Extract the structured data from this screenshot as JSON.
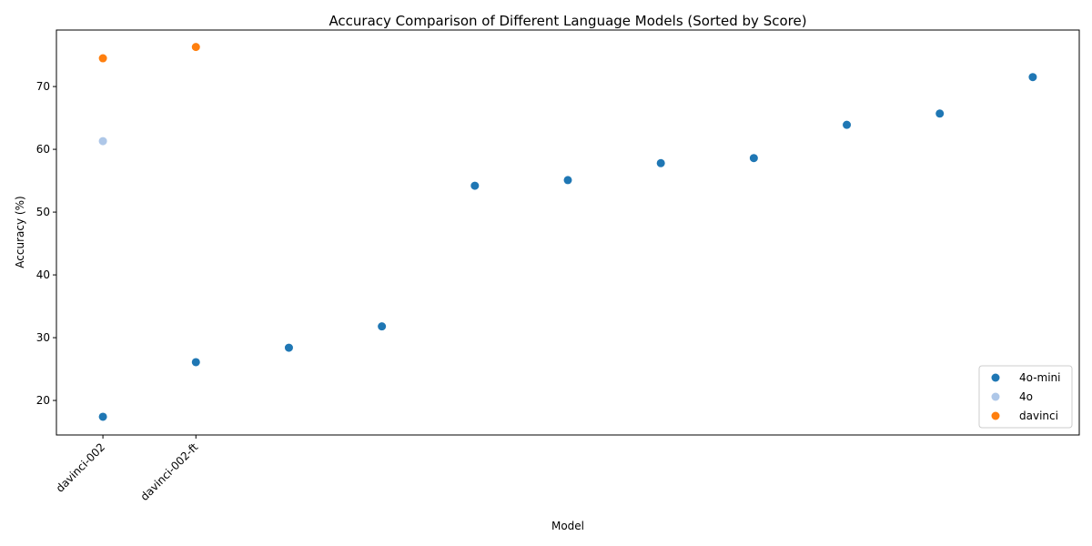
{
  "chart_data": {
    "type": "scatter",
    "title": "Accuracy Comparison of Different Language Models (Sorted by Score)",
    "xlabel": "Model",
    "ylabel": "Accuracy (%)",
    "x_tick_labels": [
      "davinci-002",
      "davinci-002-ft"
    ],
    "ylim": [
      14.5,
      79
    ],
    "y_ticks": [
      20,
      30,
      40,
      50,
      60,
      70
    ],
    "grid": false,
    "legend_position": "lower right",
    "series": [
      {
        "name": "4o-mini",
        "color": "#1f77b4",
        "points": [
          {
            "x": 0,
            "y": 17.4
          },
          {
            "x": 1,
            "y": 26.1
          },
          {
            "x": 2,
            "y": 28.4
          },
          {
            "x": 3,
            "y": 31.8
          },
          {
            "x": 4,
            "y": 54.2
          },
          {
            "x": 5,
            "y": 55.1
          },
          {
            "x": 6,
            "y": 57.8
          },
          {
            "x": 7,
            "y": 58.6
          },
          {
            "x": 8,
            "y": 63.9
          },
          {
            "x": 9,
            "y": 65.7
          },
          {
            "x": 10,
            "y": 71.5
          }
        ]
      },
      {
        "name": "4o",
        "color": "#aec7e8",
        "points": [
          {
            "x": 0,
            "y": 61.3
          }
        ]
      },
      {
        "name": "davinci",
        "color": "#ff7f0e",
        "points": [
          {
            "x": 0,
            "y": 74.5
          },
          {
            "x": 1,
            "y": 76.3
          }
        ]
      }
    ]
  }
}
